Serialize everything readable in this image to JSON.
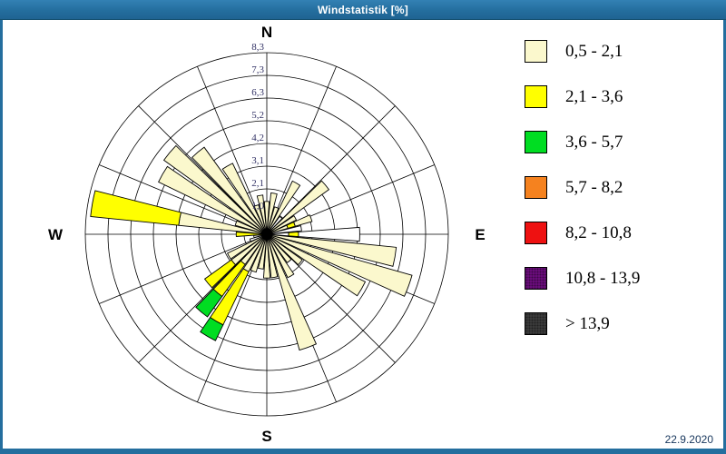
{
  "window": {
    "title": "Windstatistik [%]",
    "date": "22.9.2020"
  },
  "compass": {
    "north": "N",
    "east": "E",
    "south": "S",
    "west": "W"
  },
  "colors": {
    "pale": "#FBF8CD",
    "yellow": "#FFFF00",
    "green": "#00DD22",
    "orange": "#F5821F",
    "red": "#EE1111",
    "purple": "#6E0D80",
    "dark": "#3D3D3D",
    "white": "#FFFFFF",
    "grid": "#000000",
    "ring_label": "#333366",
    "titlebar": "#246E9E"
  },
  "chart_data": {
    "type": "windrose",
    "title": "Windstatistik [%]",
    "unit": "%",
    "max_value": 8.3,
    "ring_labels": [
      "1,0",
      "2,1",
      "3,1",
      "4,2",
      "5,2",
      "6,3",
      "7,3",
      "8,3"
    ],
    "ring_values": [
      1.0,
      2.1,
      3.1,
      4.2,
      5.2,
      6.3,
      7.3,
      8.3
    ],
    "grid_sectors": 16,
    "petal_width_deg": 8.5,
    "legend_title": "",
    "speed_classes": [
      {
        "label": "0,5 - 2,1",
        "color_key": "pale",
        "dotted": false
      },
      {
        "label": "2,1 - 3,6",
        "color_key": "yellow",
        "dotted": false
      },
      {
        "label": "3,6 - 5,7",
        "color_key": "green",
        "dotted": false
      },
      {
        "label": "5,7 - 8,2",
        "color_key": "orange",
        "dotted": false
      },
      {
        "label": "8,2 - 10,8",
        "color_key": "red",
        "dotted": false
      },
      {
        "label": "10,8 - 13,9",
        "color_key": "purple",
        "dotted": true
      },
      {
        "label": "> 13,9",
        "color_key": "dark",
        "dotted": true
      }
    ],
    "petals": [
      {
        "dir": 0,
        "segments": [
          [
            "pale",
            0,
            1.5
          ]
        ]
      },
      {
        "dir": 10,
        "segments": [
          [
            "pale",
            0,
            1.9
          ]
        ]
      },
      {
        "dir": 20,
        "segments": [
          [
            "pale",
            0,
            1.3
          ]
        ]
      },
      {
        "dir": 30,
        "segments": [
          [
            "pale",
            0,
            2.7
          ]
        ]
      },
      {
        "dir": 40,
        "segments": [
          [
            "white",
            0,
            1.0
          ]
        ]
      },
      {
        "dir": 50,
        "segments": [
          [
            "pale",
            0,
            3.5
          ]
        ]
      },
      {
        "dir": 60,
        "segments": [
          [
            "pale",
            0,
            1.5
          ]
        ]
      },
      {
        "dir": 70,
        "segments": [
          [
            "pale",
            0,
            1.0
          ],
          [
            "yellow",
            1.0,
            1.35
          ],
          [
            "pale",
            1.35,
            2.15
          ]
        ]
      },
      {
        "dir": 80,
        "segments": [
          [
            "white",
            0,
            1.6
          ]
        ]
      },
      {
        "dir": 90,
        "segments": [
          [
            "white",
            0,
            1.0
          ],
          [
            "yellow",
            1.0,
            1.45
          ],
          [
            "white",
            1.45,
            4.25
          ]
        ]
      },
      {
        "dir": 100,
        "segments": [
          [
            "pale",
            0,
            5.95
          ]
        ]
      },
      {
        "dir": 110,
        "segments": [
          [
            "pale",
            0,
            6.9
          ]
        ]
      },
      {
        "dir": 120,
        "segments": [
          [
            "pale",
            0,
            5.0
          ]
        ]
      },
      {
        "dir": 130,
        "segments": [
          [
            "pale",
            0,
            2.0
          ]
        ]
      },
      {
        "dir": 140,
        "segments": [
          [
            "pale",
            0,
            1.6
          ]
        ]
      },
      {
        "dir": 150,
        "segments": [
          [
            "pale",
            0,
            2.2
          ]
        ]
      },
      {
        "dir": 160,
        "segments": [
          [
            "pale",
            0,
            5.5
          ]
        ]
      },
      {
        "dir": 170,
        "segments": [
          [
            "pale",
            0,
            2.0
          ]
        ]
      },
      {
        "dir": 180,
        "segments": [
          [
            "pale",
            0,
            2.0
          ]
        ]
      },
      {
        "dir": 190,
        "segments": [
          [
            "pale",
            0,
            1.6
          ]
        ]
      },
      {
        "dir": 200,
        "segments": [
          [
            "pale",
            0,
            1.8
          ]
        ]
      },
      {
        "dir": 210,
        "segments": [
          [
            "pale",
            0,
            1.9
          ],
          [
            "yellow",
            1.9,
            4.6
          ],
          [
            "green",
            4.6,
            5.4
          ]
        ]
      },
      {
        "dir": 220,
        "segments": [
          [
            "pale",
            0,
            1.7
          ],
          [
            "yellow",
            1.7,
            3.5
          ],
          [
            "green",
            3.5,
            4.65
          ]
        ]
      },
      {
        "dir": 230,
        "segments": [
          [
            "pale",
            0,
            2.0
          ],
          [
            "yellow",
            2.0,
            3.5
          ]
        ]
      },
      {
        "dir": 240,
        "segments": [
          [
            "pale",
            0,
            2.0
          ]
        ]
      },
      {
        "dir": 250,
        "segments": [
          [
            "white",
            0,
            0.8
          ]
        ]
      },
      {
        "dir": 260,
        "segments": [
          [
            "white",
            0,
            0.6
          ]
        ]
      },
      {
        "dir": 270,
        "segments": [
          [
            "yellow",
            0,
            1.4
          ]
        ]
      },
      {
        "dir": 280,
        "segments": [
          [
            "pale",
            0,
            4.05
          ],
          [
            "yellow",
            4.05,
            8.1
          ]
        ]
      },
      {
        "dir": 290,
        "segments": [
          [
            "pale",
            0,
            1.5
          ]
        ]
      },
      {
        "dir": 300,
        "segments": [
          [
            "pale",
            0,
            5.5
          ]
        ]
      },
      {
        "dir": 310,
        "segments": [
          [
            "pale",
            0,
            5.8
          ]
        ]
      },
      {
        "dir": 320,
        "segments": [
          [
            "pale",
            0,
            4.9
          ]
        ]
      },
      {
        "dir": 330,
        "segments": [
          [
            "pale",
            0,
            3.6
          ]
        ]
      },
      {
        "dir": 340,
        "segments": [
          [
            "pale",
            0,
            1.4
          ]
        ]
      },
      {
        "dir": 350,
        "segments": [
          [
            "pale",
            0,
            1.8
          ]
        ]
      }
    ]
  }
}
